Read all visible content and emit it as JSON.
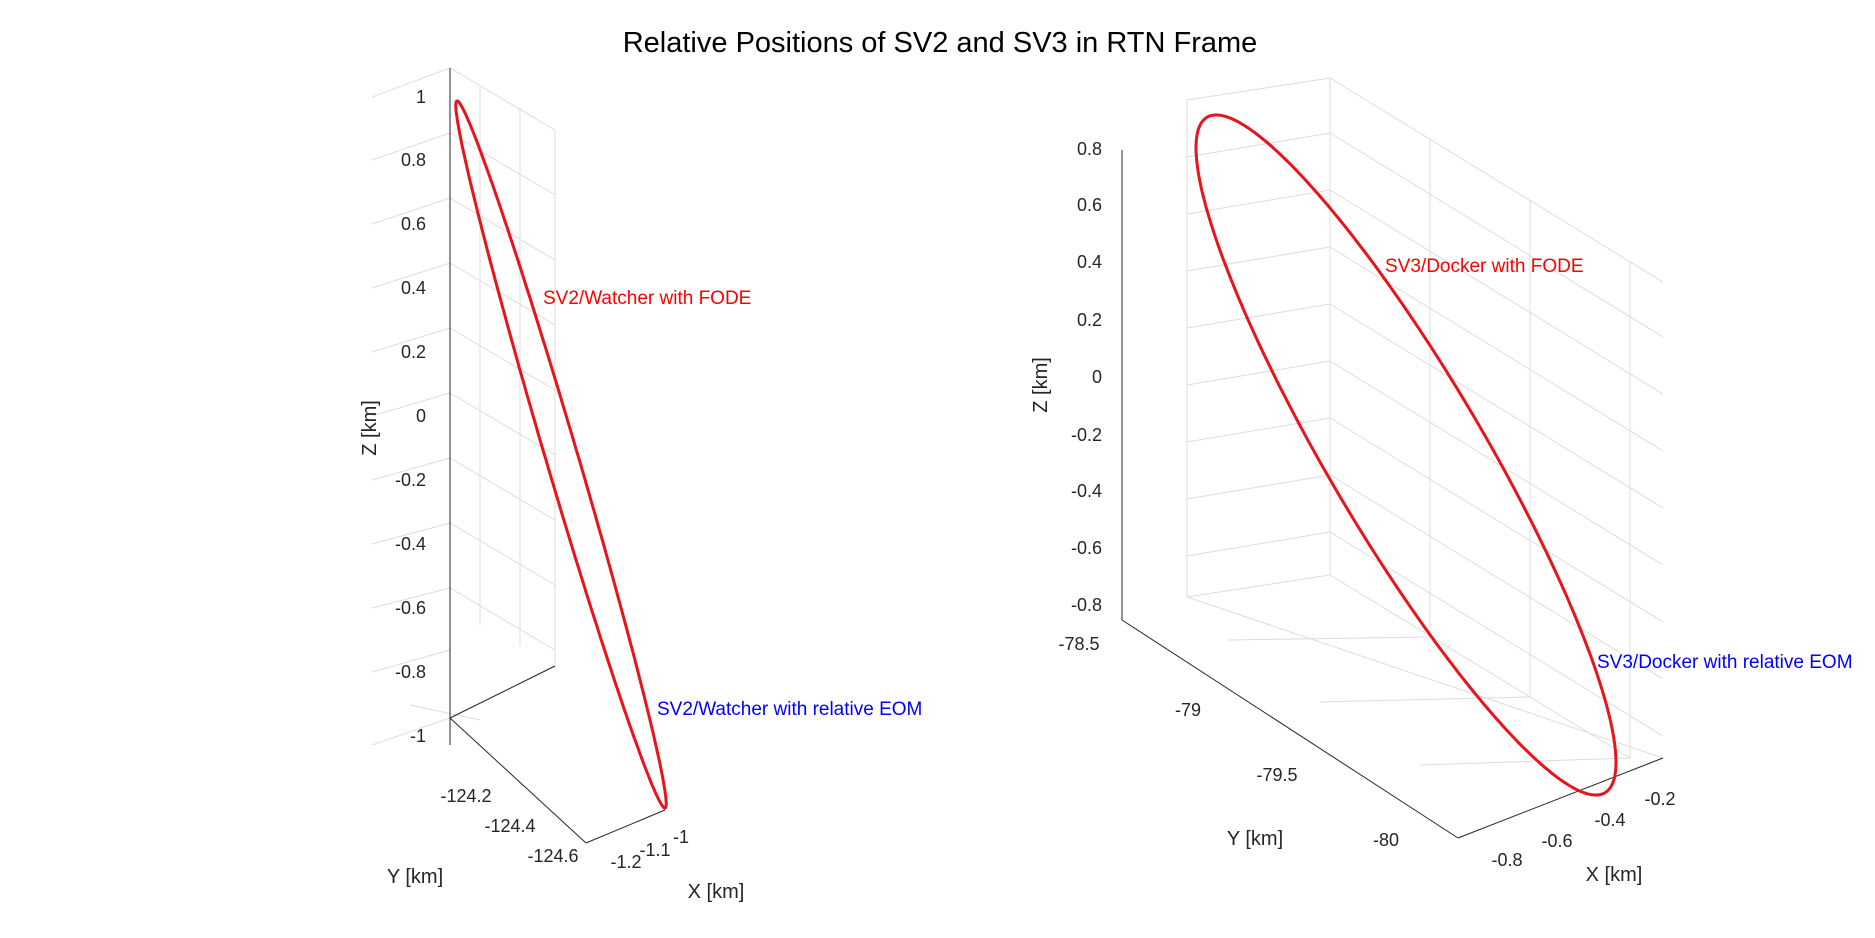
{
  "figure": {
    "title": "Relative Positions of SV2 and SV3 in RTN Frame"
  },
  "colors": {
    "trajectory": "#e8141c",
    "fode_label": "#ff0000",
    "eom_label": "#0000ff",
    "grid": "#dcdcdc",
    "axis": "#262626"
  },
  "chart_data": [
    {
      "type": "line",
      "projection": "3d",
      "grid": true,
      "xlabel": "X [km]",
      "ylabel": "Y [km]",
      "zlabel": "Z [km]",
      "xlim": [
        -1.25,
        -0.98
      ],
      "ylim": [
        -124.65,
        -124.1
      ],
      "zlim": [
        -1,
        1
      ],
      "xticks": [
        -1.2,
        -1.1,
        -1
      ],
      "xticklabels": [
        "-1.2",
        "-1.1",
        "-1"
      ],
      "yticks": [
        -124.2,
        -124.4,
        -124.6
      ],
      "yticklabels": [
        "-124.2",
        "-124.4",
        "-124.6"
      ],
      "zticks": [
        1,
        0.8,
        0.6,
        0.4,
        0.2,
        0,
        -0.2,
        -0.4,
        -0.6,
        -0.8,
        -1
      ],
      "zticklabels": [
        "1",
        "0.8",
        "0.6",
        "0.4",
        "0.2",
        "0",
        "-0.2",
        "-0.4",
        "-0.6",
        "-0.8",
        "-1"
      ],
      "series": [
        {
          "description": "closed elliptical relative orbit",
          "x": [
            -1.0,
            -1.04,
            -1.1,
            -1.16,
            -1.2,
            -1.16,
            -1.1,
            -1.04,
            -1.0
          ],
          "y": [
            -124.62,
            -124.55,
            -124.39,
            -124.23,
            -124.12,
            -124.19,
            -124.35,
            -124.51,
            -124.62
          ],
          "z": [
            -1.0,
            -0.7,
            0.0,
            0.7,
            1.0,
            0.7,
            0.0,
            -0.7,
            -1.0
          ]
        }
      ],
      "annotations": [
        {
          "text": "SV2/Watcher with FODE",
          "color": "#ff0000"
        },
        {
          "text": "SV2/Watcher with relative EOM",
          "color": "#0000ff"
        }
      ]
    },
    {
      "type": "line",
      "projection": "3d",
      "grid": true,
      "xlabel": "X [km]",
      "ylabel": "Y [km]",
      "zlabel": "Z [km]",
      "xlim": [
        -0.9,
        -0.1
      ],
      "ylim": [
        -80.2,
        -78.5
      ],
      "zlim": [
        -0.85,
        0.85
      ],
      "xticks": [
        -0.8,
        -0.6,
        -0.4,
        -0.2
      ],
      "xticklabels": [
        "-0.8",
        "-0.6",
        "-0.4",
        "-0.2"
      ],
      "yticks": [
        -78.5,
        -79,
        -79.5,
        -80
      ],
      "yticklabels": [
        "-78.5",
        "-79",
        "-79.5",
        "-80"
      ],
      "zticks": [
        0.8,
        0.6,
        0.4,
        0.2,
        0,
        -0.2,
        -0.4,
        -0.6,
        -0.8
      ],
      "zticklabels": [
        "0.8",
        "0.6",
        "0.4",
        "0.2",
        "0",
        "-0.2",
        "-0.4",
        "-0.6",
        "-0.8"
      ],
      "series": [
        {
          "description": "closed elliptical relative orbit",
          "x": [
            -0.35,
            -0.3,
            -0.35,
            -0.5,
            -0.7,
            -0.8,
            -0.75,
            -0.6,
            -0.35
          ],
          "y": [
            -79.9,
            -79.6,
            -79.2,
            -78.9,
            -78.7,
            -78.8,
            -79.1,
            -79.5,
            -79.9
          ],
          "z": [
            -0.8,
            -0.3,
            0.25,
            0.65,
            0.85,
            0.6,
            0.1,
            -0.45,
            -0.8
          ]
        }
      ],
      "annotations": [
        {
          "text": "SV3/Docker with FODE",
          "color": "#ff0000"
        },
        {
          "text": "SV3/Docker with relative EOM",
          "color": "#0000ff"
        }
      ]
    }
  ]
}
